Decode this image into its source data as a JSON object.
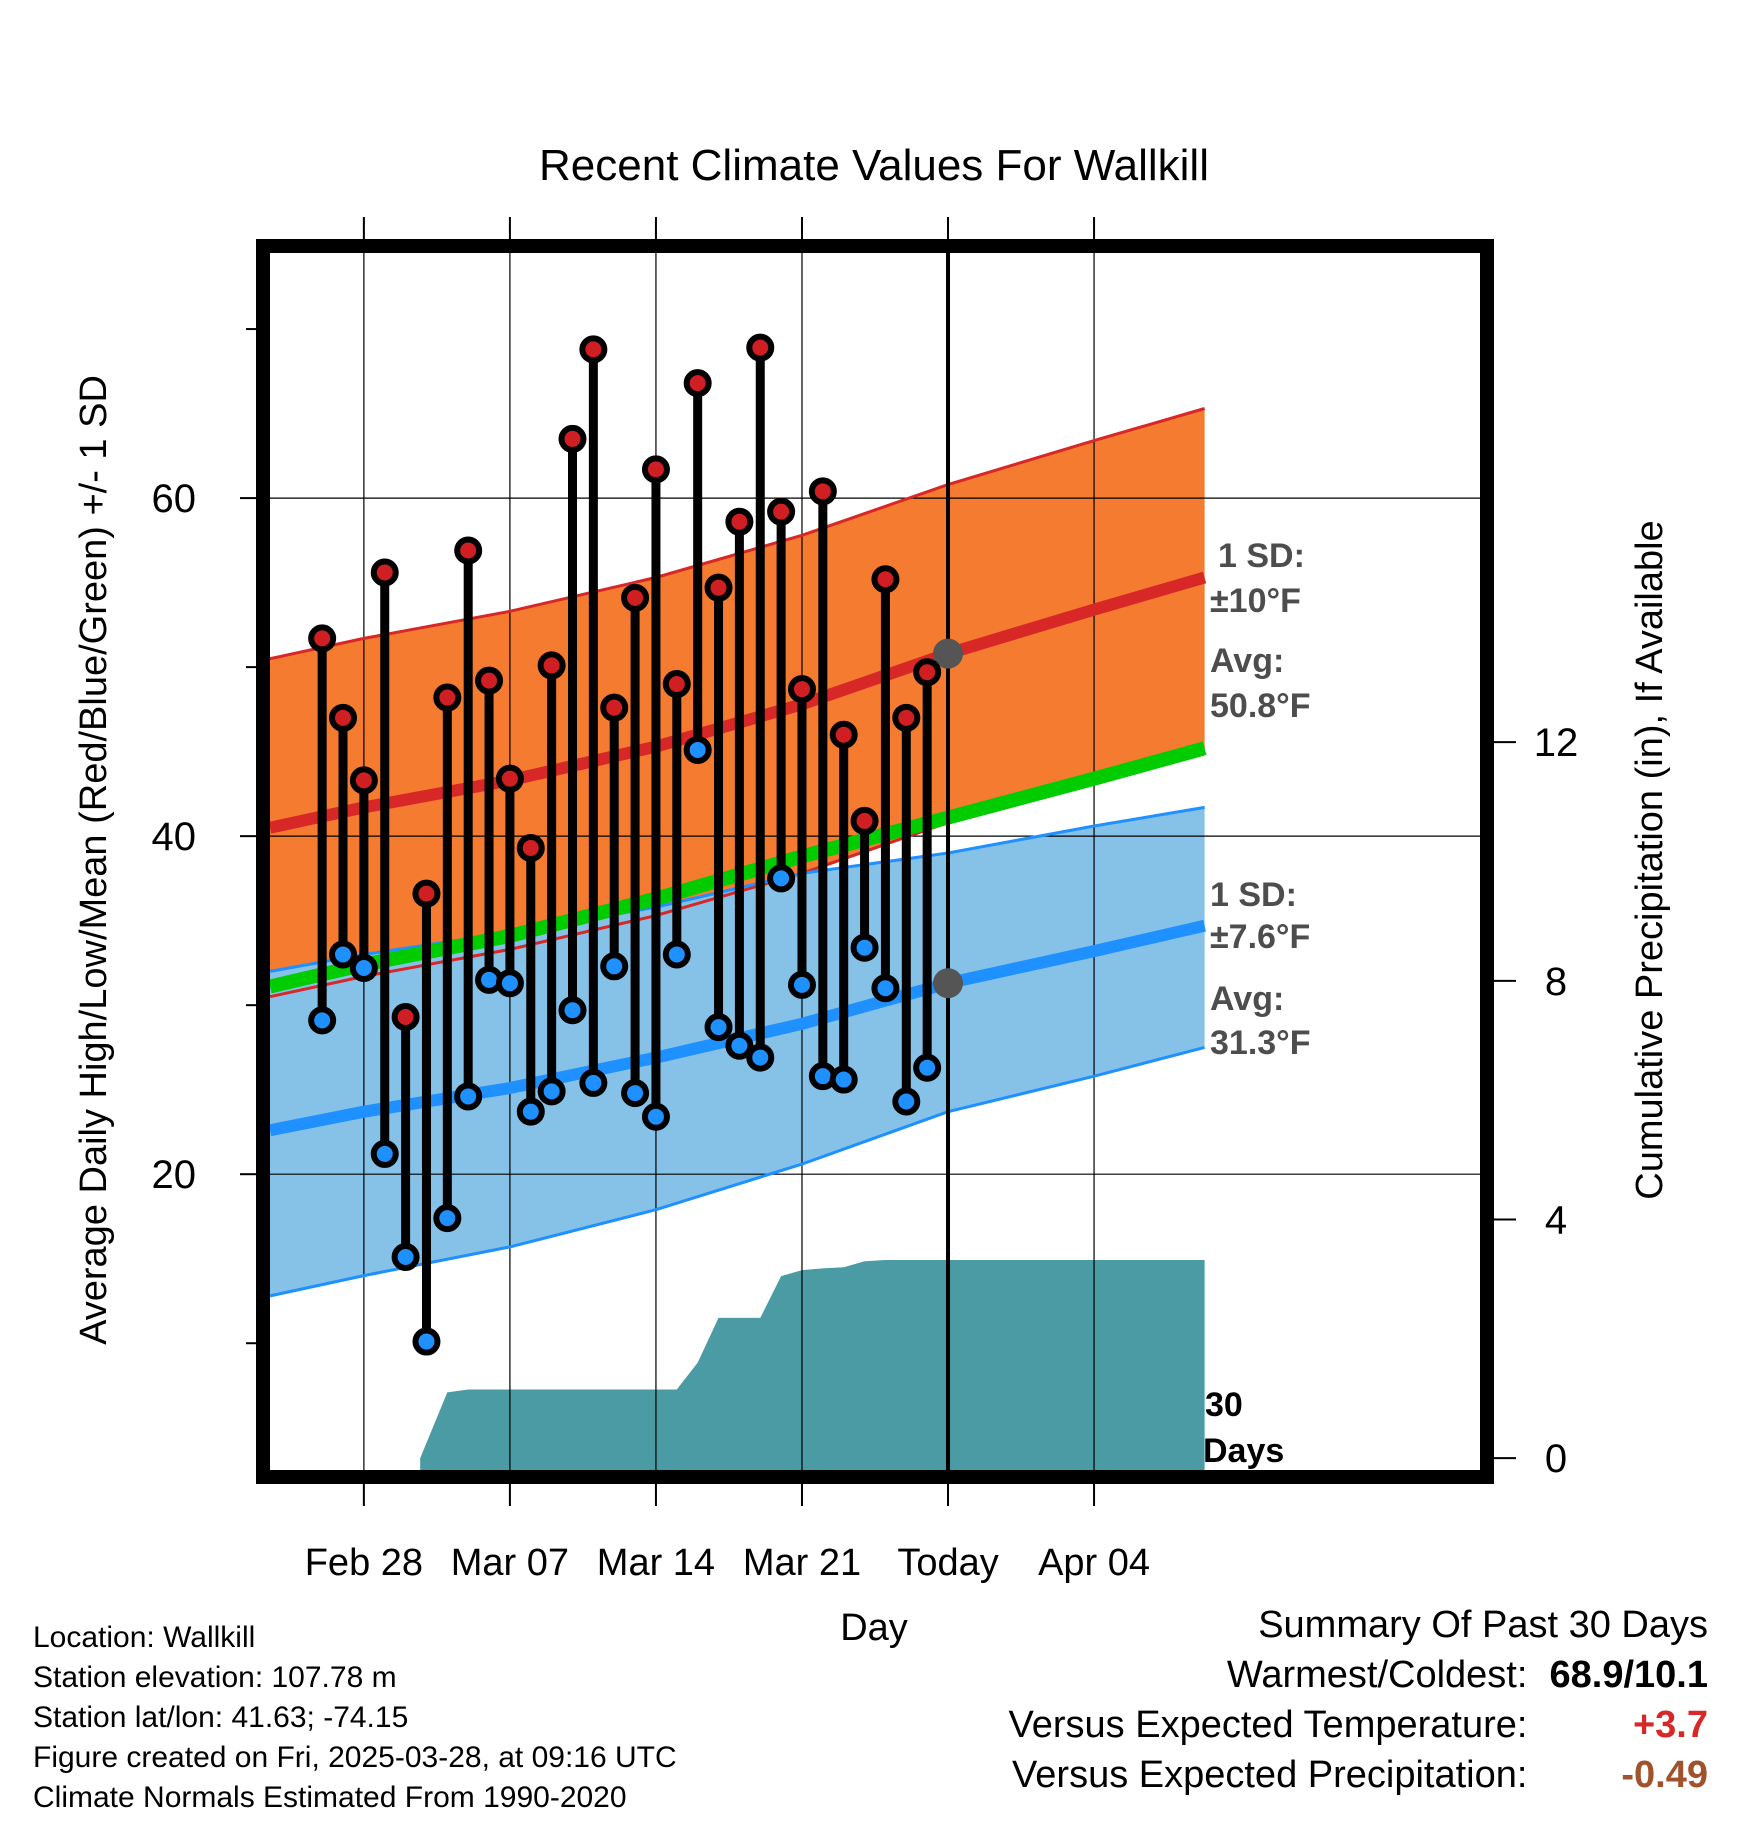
{
  "title": "Recent Climate Values For Wallkill",
  "colors": {
    "high_band": "#f47b30",
    "high_line": "#d72727",
    "low_band": "#86c1e8",
    "low_line": "#1e90ff",
    "mean_line": "#00cc00",
    "precip": "#4a9ba4",
    "high_dot": "#d01f23",
    "low_dot": "#1e90ff",
    "annotation": "#4d4d4d",
    "warm": "#d72727",
    "precip_anomaly": "#a0522d"
  },
  "chart_data": {
    "type": "line",
    "title": "Recent Climate Values For Wallkill",
    "xlabel": "Day",
    "ylabel": "Average Daily High/Low/Mean (Red/Blue/Green) +/- 1 SD",
    "y2label": "Cumulative Precipitation (in), If Available",
    "xlim": [
      -4.5,
      53.5
    ],
    "ylim": [
      2.5,
      74.5
    ],
    "y2lim": [
      -0.2,
      20.2
    ],
    "x_ticks": [
      {
        "x": 0,
        "label": "Feb 28"
      },
      {
        "x": 7,
        "label": "Mar 07"
      },
      {
        "x": 14,
        "label": "Mar 14"
      },
      {
        "x": 21,
        "label": "Mar 21"
      },
      {
        "x": 28,
        "label": "Today"
      },
      {
        "x": 35,
        "label": "Apr 04"
      }
    ],
    "y_ticks": [
      20,
      40,
      60
    ],
    "y_minor_ticks": [
      10,
      30,
      50,
      70
    ],
    "y2_ticks": [
      0,
      4,
      8,
      12
    ],
    "today_x": 28,
    "days": [
      -2,
      -1,
      0,
      1,
      2,
      3,
      4,
      5,
      6,
      7,
      8,
      9,
      10,
      11,
      12,
      13,
      14,
      15,
      16,
      17,
      18,
      19,
      20,
      21,
      22,
      23,
      24,
      25,
      26,
      27
    ],
    "highs": [
      51.7,
      47.0,
      43.3,
      55.6,
      29.3,
      36.6,
      48.2,
      56.9,
      49.2,
      43.4,
      39.3,
      50.1,
      63.5,
      68.8,
      47.6,
      54.1,
      61.7,
      49.0,
      66.8,
      54.7,
      58.6,
      68.9,
      59.2,
      48.7,
      60.4,
      46.0,
      40.9,
      55.2,
      47.0,
      49.7
    ],
    "lows": [
      29.1,
      33.0,
      32.2,
      21.2,
      15.1,
      10.1,
      17.4,
      24.6,
      31.5,
      31.3,
      23.7,
      24.9,
      29.7,
      25.4,
      32.3,
      24.8,
      23.4,
      33.0,
      45.1,
      28.7,
      27.6,
      26.9,
      37.5,
      31.2,
      25.8,
      25.6,
      33.4,
      31.0,
      24.3,
      26.3
    ],
    "normal_x": [
      -4.5,
      0,
      7,
      14,
      21,
      28,
      35,
      40.3
    ],
    "normal_high": [
      40.5,
      41.7,
      43.3,
      45.3,
      47.8,
      50.8,
      53.4,
      55.3
    ],
    "high_sd_upper": [
      50.5,
      51.7,
      53.3,
      55.3,
      57.8,
      60.8,
      63.4,
      65.3
    ],
    "high_sd_lower": [
      30.5,
      31.7,
      33.3,
      35.3,
      37.8,
      40.8,
      43.4,
      45.3
    ],
    "normal_mean": [
      31.1,
      32.4,
      34.1,
      36.3,
      38.8,
      41.1,
      43.4,
      45.2
    ],
    "normal_low": [
      22.6,
      23.7,
      25.1,
      26.9,
      28.9,
      31.3,
      33.2,
      34.7
    ],
    "low_sd_upper": [
      32.0,
      33.0,
      34.3,
      35.8,
      37.8,
      39.0,
      40.6,
      41.7
    ],
    "low_sd_lower": [
      12.8,
      14.0,
      15.7,
      17.9,
      20.6,
      23.7,
      25.8,
      27.5
    ],
    "precip_x": [
      2.7,
      4.0,
      5.0,
      15.0,
      16.0,
      17.0,
      18.0,
      19.0,
      19.5,
      20.0,
      20.5,
      21.0,
      22.0,
      23.0,
      24.0,
      25.0,
      40.3
    ],
    "precip_values": [
      0.0,
      1.1,
      1.15,
      1.15,
      1.6,
      2.35,
      2.35,
      2.35,
      2.7,
      3.05,
      3.1,
      3.15,
      3.18,
      3.2,
      3.3,
      3.32,
      3.32
    ]
  },
  "annotations": {
    "high_sd_label": "1 SD:",
    "high_sd_value": "±10°F",
    "high_avg_label": "Avg:",
    "high_avg_value": "50.8°F",
    "low_sd_label": "1 SD:",
    "low_sd_value": "±7.6°F",
    "low_avg_label": "Avg:",
    "low_avg_value": "31.3°F",
    "days_count": "30",
    "days_word": "Days"
  },
  "info": {
    "location": "Location: Wallkill",
    "elevation": "Station elevation: 107.78 m",
    "latlon": "Station lat/lon: 41.63; -74.15",
    "created": "Figure created on Fri, 2025-03-28, at 09:16 UTC",
    "normals": "Climate Normals Estimated From 1990-2020"
  },
  "summary": {
    "heading": "Summary Of Past 30 Days",
    "warmest_label": "Warmest/Coldest:",
    "warmest_value": "68.9/10.1",
    "temp_label": "Versus Expected Temperature:",
    "temp_value": "+3.7",
    "precip_label": "Versus Expected Precipitation:",
    "precip_value": "-0.49"
  }
}
